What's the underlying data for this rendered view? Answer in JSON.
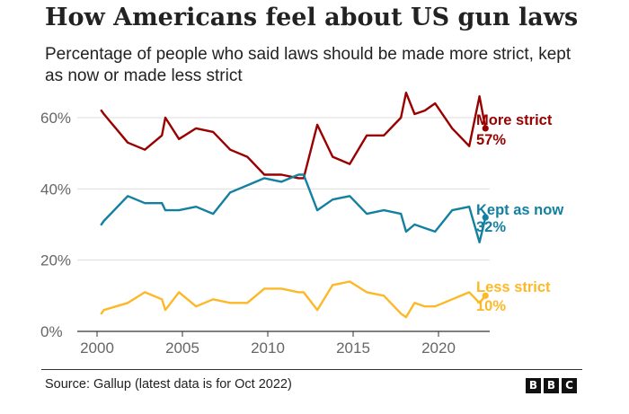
{
  "header": {
    "title": "How Americans feel about US gun laws",
    "subtitle": "Percentage of people who said laws should be made more strict, kept as now or made less strict"
  },
  "footer": {
    "source": "Source: Gallup (latest data is for Oct 2022)",
    "logo_letters": [
      "B",
      "B",
      "C"
    ]
  },
  "chart_data": {
    "type": "line",
    "title": "How Americans feel about US gun laws",
    "subtitle": "Percentage of people who said laws should be made more strict, kept as now or made less strict",
    "xlabel": "",
    "ylabel": "",
    "xlim": [
      2000,
      2023
    ],
    "ylim": [
      0,
      60
    ],
    "x_ticks": [
      2000,
      2005,
      2010,
      2015,
      2020
    ],
    "x_tick_labels": [
      "2000",
      "2005",
      "2010",
      "2015",
      "2020"
    ],
    "y_ticks": [
      0,
      20,
      40,
      60
    ],
    "y_tick_labels": [
      "0%",
      "20%",
      "40%",
      "60%"
    ],
    "grid": true,
    "series": [
      {
        "name": "More strict",
        "color": "#990000",
        "end_label": "More strict",
        "end_value_label": "57%",
        "points": [
          [
            2000.25,
            62
          ],
          [
            2000.4,
            61
          ],
          [
            2001.8,
            53
          ],
          [
            2002.8,
            51
          ],
          [
            2003.8,
            55
          ],
          [
            2004.0,
            60
          ],
          [
            2004.8,
            54
          ],
          [
            2005.8,
            57
          ],
          [
            2006.8,
            56
          ],
          [
            2007.8,
            51
          ],
          [
            2008.8,
            49
          ],
          [
            2009.8,
            44
          ],
          [
            2010.8,
            44
          ],
          [
            2011.8,
            43
          ],
          [
            2012.1,
            43
          ],
          [
            2012.9,
            58
          ],
          [
            2013.8,
            49
          ],
          [
            2014.8,
            47
          ],
          [
            2015.8,
            55
          ],
          [
            2016.8,
            55
          ],
          [
            2017.8,
            60
          ],
          [
            2018.1,
            67
          ],
          [
            2018.6,
            61
          ],
          [
            2019.2,
            62
          ],
          [
            2019.8,
            64
          ],
          [
            2020.8,
            57
          ],
          [
            2021.8,
            52
          ],
          [
            2022.4,
            66
          ],
          [
            2022.75,
            57
          ]
        ]
      },
      {
        "name": "Kept as now",
        "color": "#1380a1",
        "end_label": "Kept as now",
        "end_value_label": "32%",
        "points": [
          [
            2000.25,
            30
          ],
          [
            2000.4,
            31
          ],
          [
            2001.8,
            38
          ],
          [
            2002.8,
            36
          ],
          [
            2003.8,
            36
          ],
          [
            2004.0,
            34
          ],
          [
            2004.8,
            34
          ],
          [
            2005.8,
            35
          ],
          [
            2006.8,
            33
          ],
          [
            2007.8,
            39
          ],
          [
            2008.8,
            41
          ],
          [
            2009.8,
            43
          ],
          [
            2010.8,
            42
          ],
          [
            2011.8,
            44
          ],
          [
            2012.1,
            44
          ],
          [
            2012.9,
            34
          ],
          [
            2013.8,
            37
          ],
          [
            2014.8,
            38
          ],
          [
            2015.8,
            33
          ],
          [
            2016.8,
            34
          ],
          [
            2017.8,
            33
          ],
          [
            2018.1,
            28
          ],
          [
            2018.6,
            30
          ],
          [
            2019.2,
            29
          ],
          [
            2019.8,
            28
          ],
          [
            2020.8,
            34
          ],
          [
            2021.8,
            35
          ],
          [
            2022.4,
            25
          ],
          [
            2022.75,
            32
          ]
        ]
      },
      {
        "name": "Less strict",
        "color": "#fdb827",
        "end_label": "Less strict",
        "end_value_label": "10%",
        "points": [
          [
            2000.25,
            5
          ],
          [
            2000.4,
            6
          ],
          [
            2001.8,
            8
          ],
          [
            2002.8,
            11
          ],
          [
            2003.8,
            9
          ],
          [
            2004.0,
            6
          ],
          [
            2004.8,
            11
          ],
          [
            2005.8,
            7
          ],
          [
            2006.8,
            9
          ],
          [
            2007.8,
            8
          ],
          [
            2008.8,
            8
          ],
          [
            2009.8,
            12
          ],
          [
            2010.8,
            12
          ],
          [
            2011.8,
            11
          ],
          [
            2012.1,
            11
          ],
          [
            2012.9,
            6
          ],
          [
            2013.8,
            13
          ],
          [
            2014.8,
            14
          ],
          [
            2015.8,
            11
          ],
          [
            2016.8,
            10
          ],
          [
            2017.8,
            5
          ],
          [
            2018.1,
            4
          ],
          [
            2018.6,
            8
          ],
          [
            2019.2,
            7
          ],
          [
            2019.8,
            7
          ],
          [
            2020.8,
            9
          ],
          [
            2021.8,
            11
          ],
          [
            2022.4,
            8
          ],
          [
            2022.75,
            10
          ]
        ]
      }
    ]
  }
}
